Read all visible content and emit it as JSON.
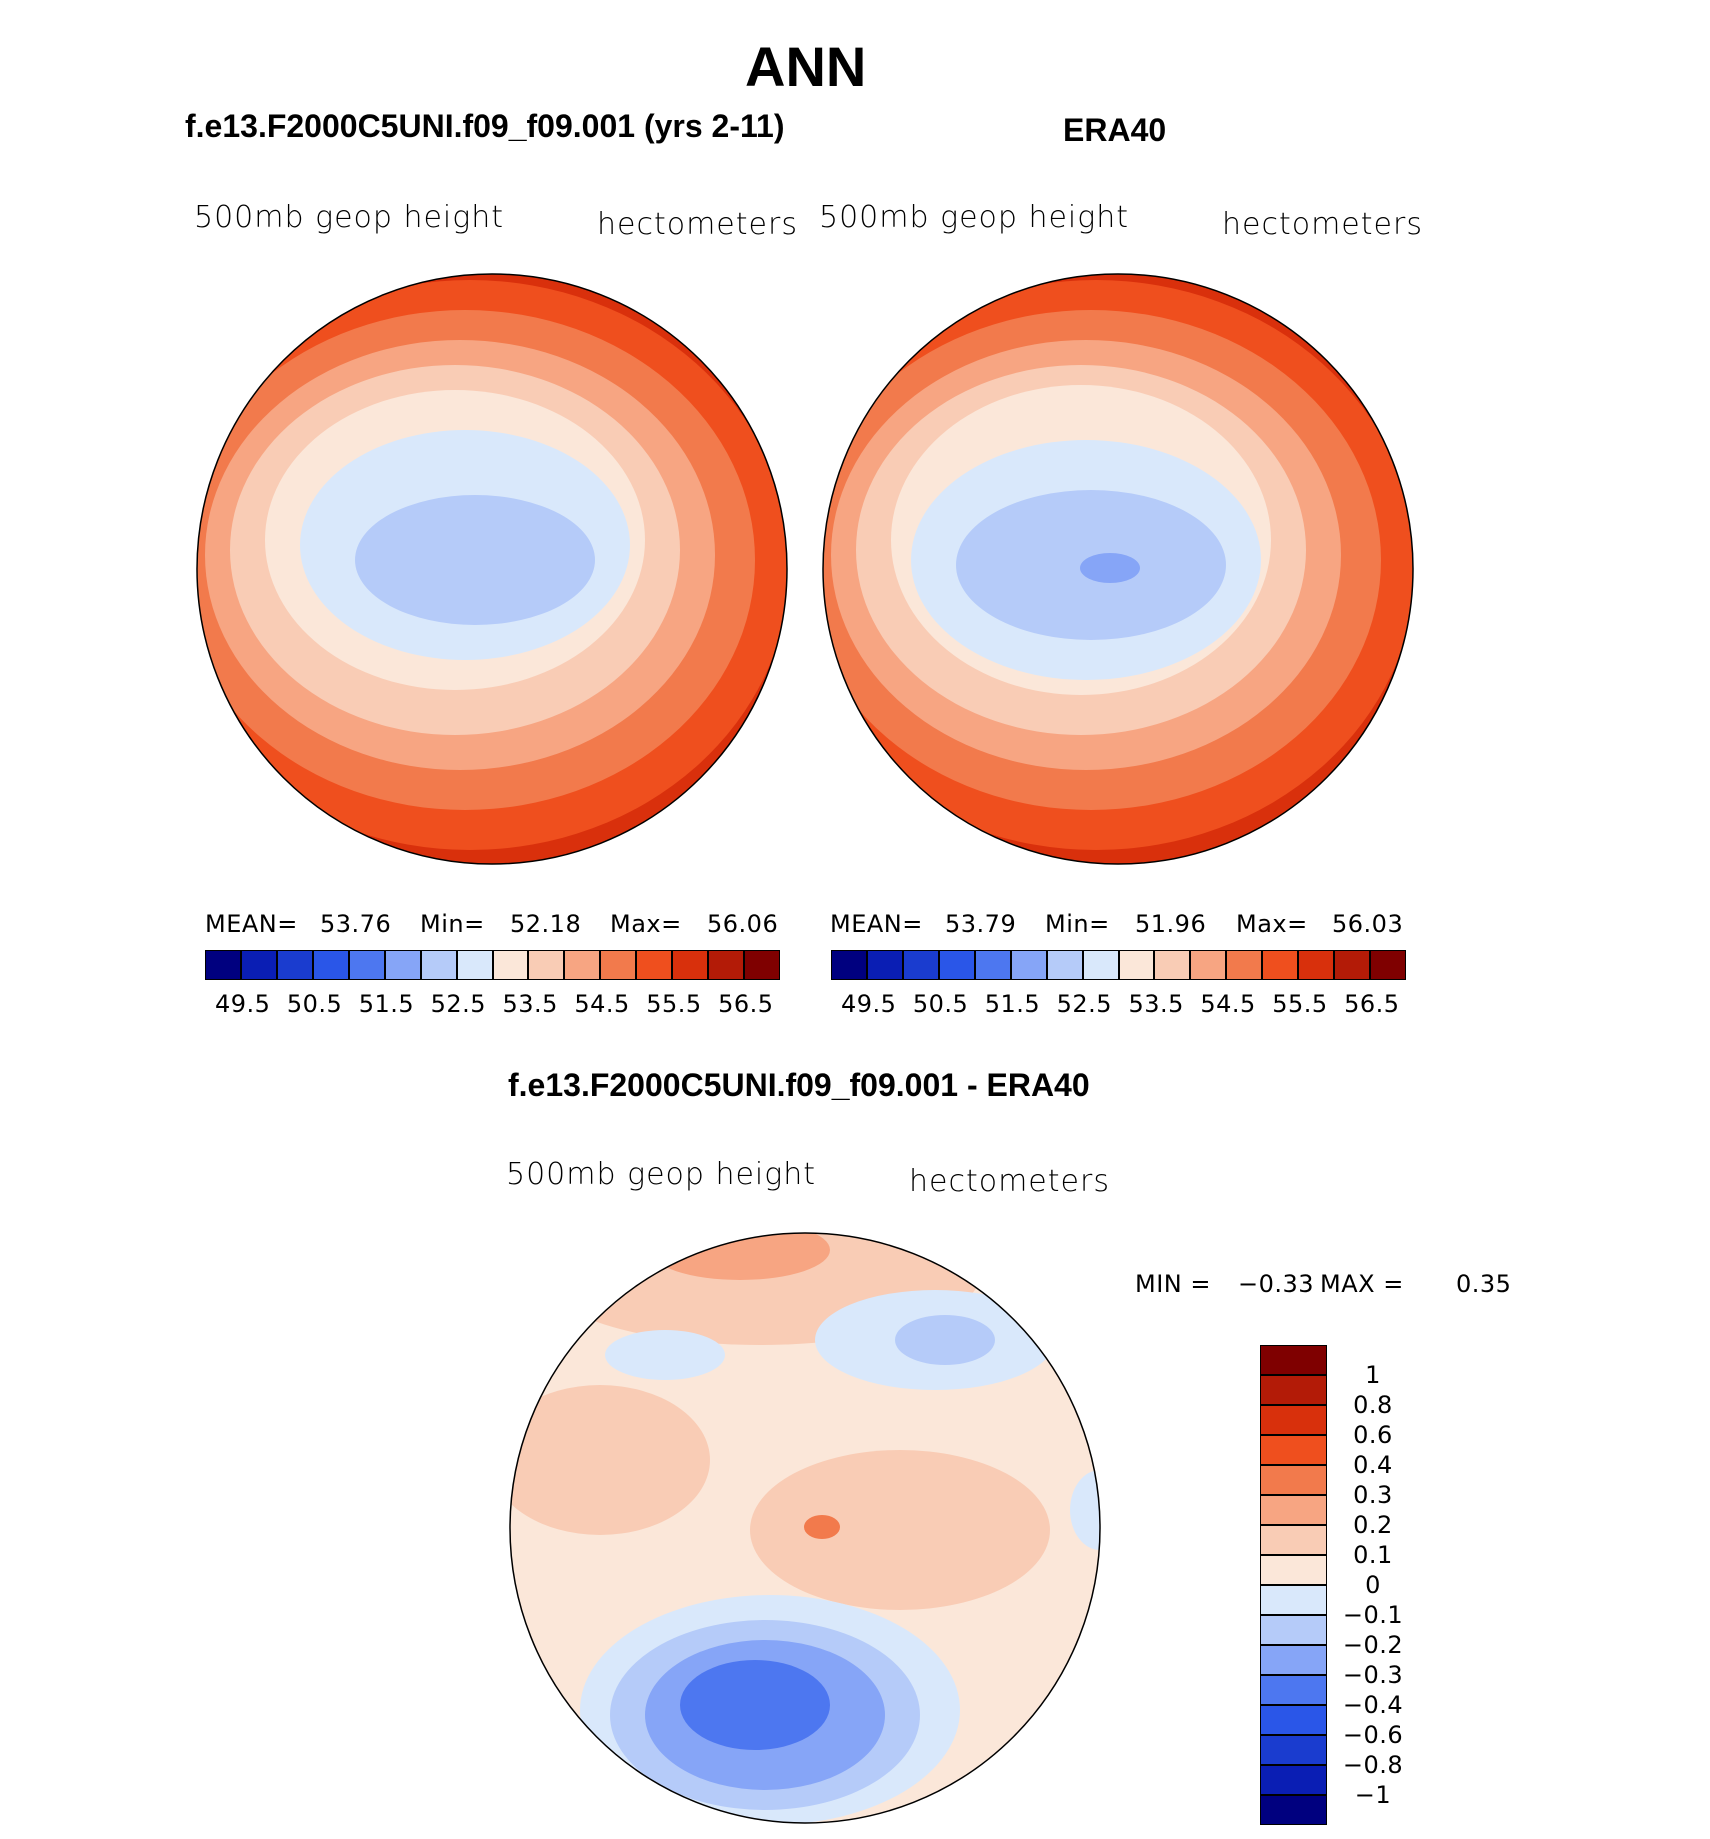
{
  "header": {
    "season": "ANN"
  },
  "panels": [
    {
      "title": "f.e13.F2000C5UNI.f09_f09.001 (yrs 2-11)",
      "left_label": "500mb geop height",
      "right_label": "hectometers",
      "stats": {
        "mean_label": "MEAN=",
        "mean": "53.76",
        "min_label": "Min=",
        "min": "52.18",
        "max_label": "Max=",
        "max": "56.06"
      }
    },
    {
      "title": "ERA40",
      "left_label": "500mb geop height",
      "right_label": "hectometers",
      "stats": {
        "mean_label": "MEAN=",
        "mean": "53.79",
        "min_label": "Min=",
        "min": "51.96",
        "max_label": "Max=",
        "max": "56.03"
      }
    },
    {
      "title": "f.e13.F2000C5UNI.f09_f09.001 - ERA40",
      "left_label": "500mb geop height",
      "right_label": "hectometers",
      "stats": {
        "min_label": "MIN =",
        "min": "−0.33",
        "max_label": "MAX =",
        "max": "0.35"
      }
    }
  ],
  "colorbar_horizontal": {
    "colors": [
      "#00007f",
      "#0a1eb4",
      "#1a3ccf",
      "#2a56e8",
      "#4d77f0",
      "#86a5f7",
      "#b5cbf9",
      "#d9e8fb",
      "#fbe7d9",
      "#f9ccb5",
      "#f7a582",
      "#f27a4c",
      "#ef4f1e",
      "#d8300c",
      "#b31b07",
      "#7f0000"
    ],
    "tick_labels": [
      "49.5",
      "50.5",
      "51.5",
      "52.5",
      "53.5",
      "54.5",
      "55.5",
      "56.5"
    ]
  },
  "colorbar_vertical": {
    "colors": [
      "#7f0000",
      "#b31b07",
      "#d8300c",
      "#ef4f1e",
      "#f27a4c",
      "#f7a582",
      "#f9ccb5",
      "#fbe7d9",
      "#d9e8fb",
      "#b5cbf9",
      "#86a5f7",
      "#4d77f0",
      "#2a56e8",
      "#1a3ccf",
      "#0a1eb4",
      "#00007f"
    ],
    "tick_labels": [
      "1",
      "0.8",
      "0.6",
      "0.4",
      "0.3",
      "0.2",
      "0.1",
      "0",
      "−0.1",
      "−0.2",
      "−0.3",
      "−0.4",
      "−0.6",
      "−0.8",
      "−1"
    ]
  }
}
